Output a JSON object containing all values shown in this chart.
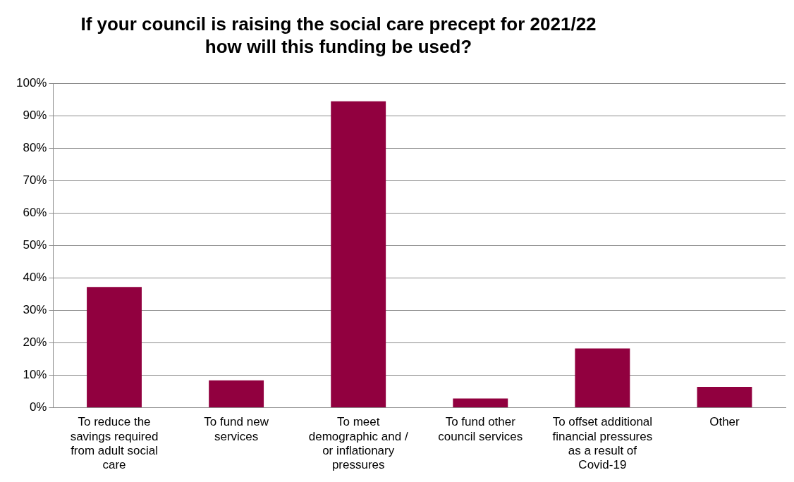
{
  "chart_data": {
    "type": "bar",
    "title": "If your council is raising the social care precept for 2021/22 how will this funding be used?",
    "categories": [
      "To reduce the savings required from adult social care",
      "To fund new services",
      "To meet demographic and / or inflationary pressures",
      "To fund other council services",
      "To offset additional financial pressures as a result of Covid-19",
      "Other"
    ],
    "values": [
      37.2,
      8.4,
      94.4,
      2.8,
      18.2,
      6.4
    ],
    "color": "#91003f",
    "ylim": [
      0,
      100
    ],
    "yticks": [
      {
        "value": 0,
        "label": "0%"
      },
      {
        "value": 10,
        "label": "10%"
      },
      {
        "value": 20,
        "label": "20%"
      },
      {
        "value": 30,
        "label": "30%"
      },
      {
        "value": 40,
        "label": "40%"
      },
      {
        "value": 50,
        "label": "50%"
      },
      {
        "value": 60,
        "label": "60%"
      },
      {
        "value": 70,
        "label": "70%"
      },
      {
        "value": 80,
        "label": "80%"
      },
      {
        "value": 90,
        "label": "90%"
      },
      {
        "value": 100,
        "label": "100%"
      }
    ],
    "grid": "y",
    "legend": false
  }
}
